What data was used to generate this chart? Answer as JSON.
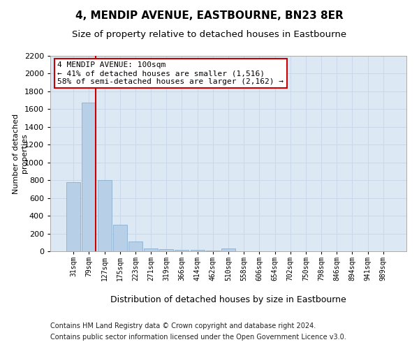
{
  "title1": "4, MENDIP AVENUE, EASTBOURNE, BN23 8ER",
  "title2": "Size of property relative to detached houses in Eastbourne",
  "xlabel": "Distribution of detached houses by size in Eastbourne",
  "ylabel": "Number of detached\nproperties",
  "categories": [
    "31sqm",
    "79sqm",
    "127sqm",
    "175sqm",
    "223sqm",
    "271sqm",
    "319sqm",
    "366sqm",
    "414sqm",
    "462sqm",
    "510sqm",
    "558sqm",
    "606sqm",
    "654sqm",
    "702sqm",
    "750sqm",
    "798sqm",
    "846sqm",
    "894sqm",
    "941sqm",
    "989sqm"
  ],
  "values": [
    775,
    1670,
    800,
    300,
    110,
    35,
    22,
    16,
    12,
    8,
    30,
    0,
    0,
    0,
    0,
    0,
    0,
    0,
    0,
    0,
    0
  ],
  "bar_color": "#b8cfe8",
  "bar_edge_color": "#8aaed0",
  "annotation_box_text": "4 MENDIP AVENUE: 100sqm\n← 41% of detached houses are smaller (1,516)\n58% of semi-detached houses are larger (2,162) →",
  "annotation_box_color": "#ffffff",
  "annotation_box_edge_color": "#cc0000",
  "vline_color": "#cc0000",
  "ylim": [
    0,
    2200
  ],
  "yticks": [
    0,
    200,
    400,
    600,
    800,
    1000,
    1200,
    1400,
    1600,
    1800,
    2000,
    2200
  ],
  "grid_color": "#c8d8e8",
  "background_color": "#dce8f4",
  "footer_line1": "Contains HM Land Registry data © Crown copyright and database right 2024.",
  "footer_line2": "Contains public sector information licensed under the Open Government Licence v3.0.",
  "title1_fontsize": 11,
  "title2_fontsize": 9.5,
  "annot_fontsize": 8,
  "footer_fontsize": 7,
  "ylabel_fontsize": 8,
  "xlabel_fontsize": 9
}
